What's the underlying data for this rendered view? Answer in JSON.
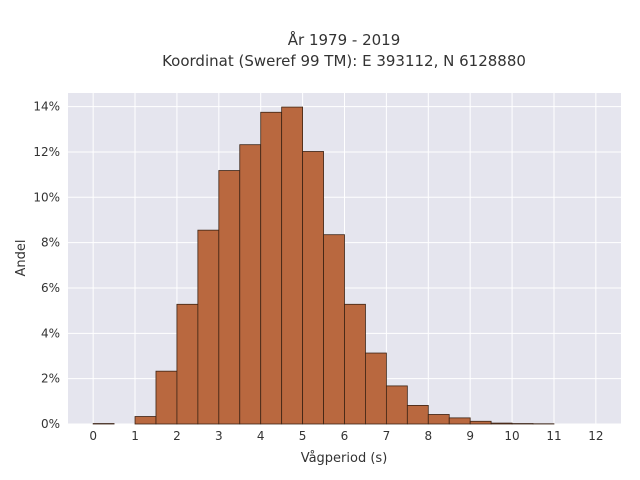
{
  "chart_data": {
    "type": "bar",
    "title_lines": [
      "År 1979 - 2019",
      "Koordinat (Sweref 99 TM): E 393112, N 6128880"
    ],
    "xlabel": "Vågperiod (s)",
    "ylabel": "Andel",
    "x_range": [
      -0.6,
      12.6
    ],
    "y_range": [
      0,
      14.6
    ],
    "x_ticks": [
      0,
      1,
      2,
      3,
      4,
      5,
      6,
      7,
      8,
      9,
      10,
      11,
      12
    ],
    "y_ticks": [
      0,
      2,
      4,
      6,
      8,
      10,
      12,
      14
    ],
    "y_tick_suffix": "%",
    "bin_width": 0.5,
    "bins": [
      {
        "x0": 0.0,
        "value": 0.02
      },
      {
        "x0": 0.5,
        "value": 0.0
      },
      {
        "x0": 1.0,
        "value": 0.33
      },
      {
        "x0": 1.5,
        "value": 2.33
      },
      {
        "x0": 2.0,
        "value": 5.28
      },
      {
        "x0": 2.5,
        "value": 8.55
      },
      {
        "x0": 3.0,
        "value": 11.18
      },
      {
        "x0": 3.5,
        "value": 12.32
      },
      {
        "x0": 4.0,
        "value": 13.75
      },
      {
        "x0": 4.5,
        "value": 13.98
      },
      {
        "x0": 5.0,
        "value": 12.02
      },
      {
        "x0": 5.5,
        "value": 8.35
      },
      {
        "x0": 6.0,
        "value": 5.28
      },
      {
        "x0": 6.5,
        "value": 3.13
      },
      {
        "x0": 7.0,
        "value": 1.68
      },
      {
        "x0": 7.5,
        "value": 0.82
      },
      {
        "x0": 8.0,
        "value": 0.42
      },
      {
        "x0": 8.5,
        "value": 0.27
      },
      {
        "x0": 9.0,
        "value": 0.12
      },
      {
        "x0": 9.5,
        "value": 0.04
      },
      {
        "x0": 10.0,
        "value": 0.02
      },
      {
        "x0": 10.5,
        "value": 0.01
      }
    ],
    "grid": true,
    "colors": {
      "plot_background": "#e5e5ee",
      "grid": "#ffffff",
      "bar_fill": "#b9683f",
      "bar_stroke": "#3c2314"
    }
  }
}
